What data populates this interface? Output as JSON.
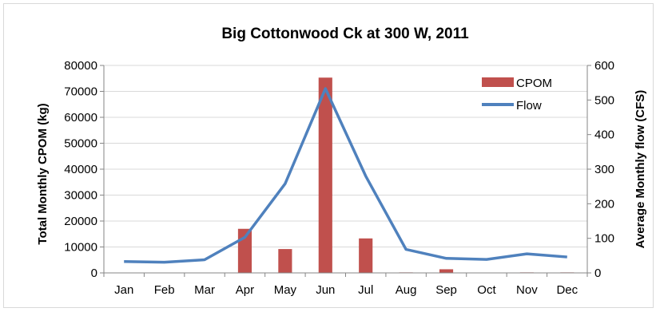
{
  "chart_data": {
    "type": "bar",
    "title": "Big Cottonwood Ck at 300 W, 2011",
    "categories": [
      "Jan",
      "Feb",
      "Mar",
      "Apr",
      "May",
      "Jun",
      "Jul",
      "Aug",
      "Sep",
      "Oct",
      "Nov",
      "Dec"
    ],
    "ylabel": "Total Monthly CPOM (kg)",
    "y2label": "Average Monthly flow (CFS)",
    "ylim": [
      0,
      80000
    ],
    "y2lim": [
      0,
      600
    ],
    "yticks": [
      "0",
      "10000",
      "20000",
      "30000",
      "40000",
      "50000",
      "60000",
      "70000",
      "80000"
    ],
    "y2ticks": [
      "0",
      "100",
      "200",
      "300",
      "400",
      "500",
      "600"
    ],
    "grid": true,
    "legend_position": "top-right",
    "series": [
      {
        "name": "CPOM",
        "type": "bar",
        "axis": "left",
        "color": "#c0504d",
        "values": [
          0,
          0,
          0,
          17000,
          9200,
          75300,
          13300,
          200,
          1400,
          0,
          200,
          200
        ]
      },
      {
        "name": "Flow",
        "type": "line",
        "axis": "right",
        "color": "#4f81bd",
        "values": [
          33,
          31,
          38,
          103,
          258,
          533,
          280,
          68,
          42,
          39,
          55,
          46
        ]
      }
    ]
  }
}
